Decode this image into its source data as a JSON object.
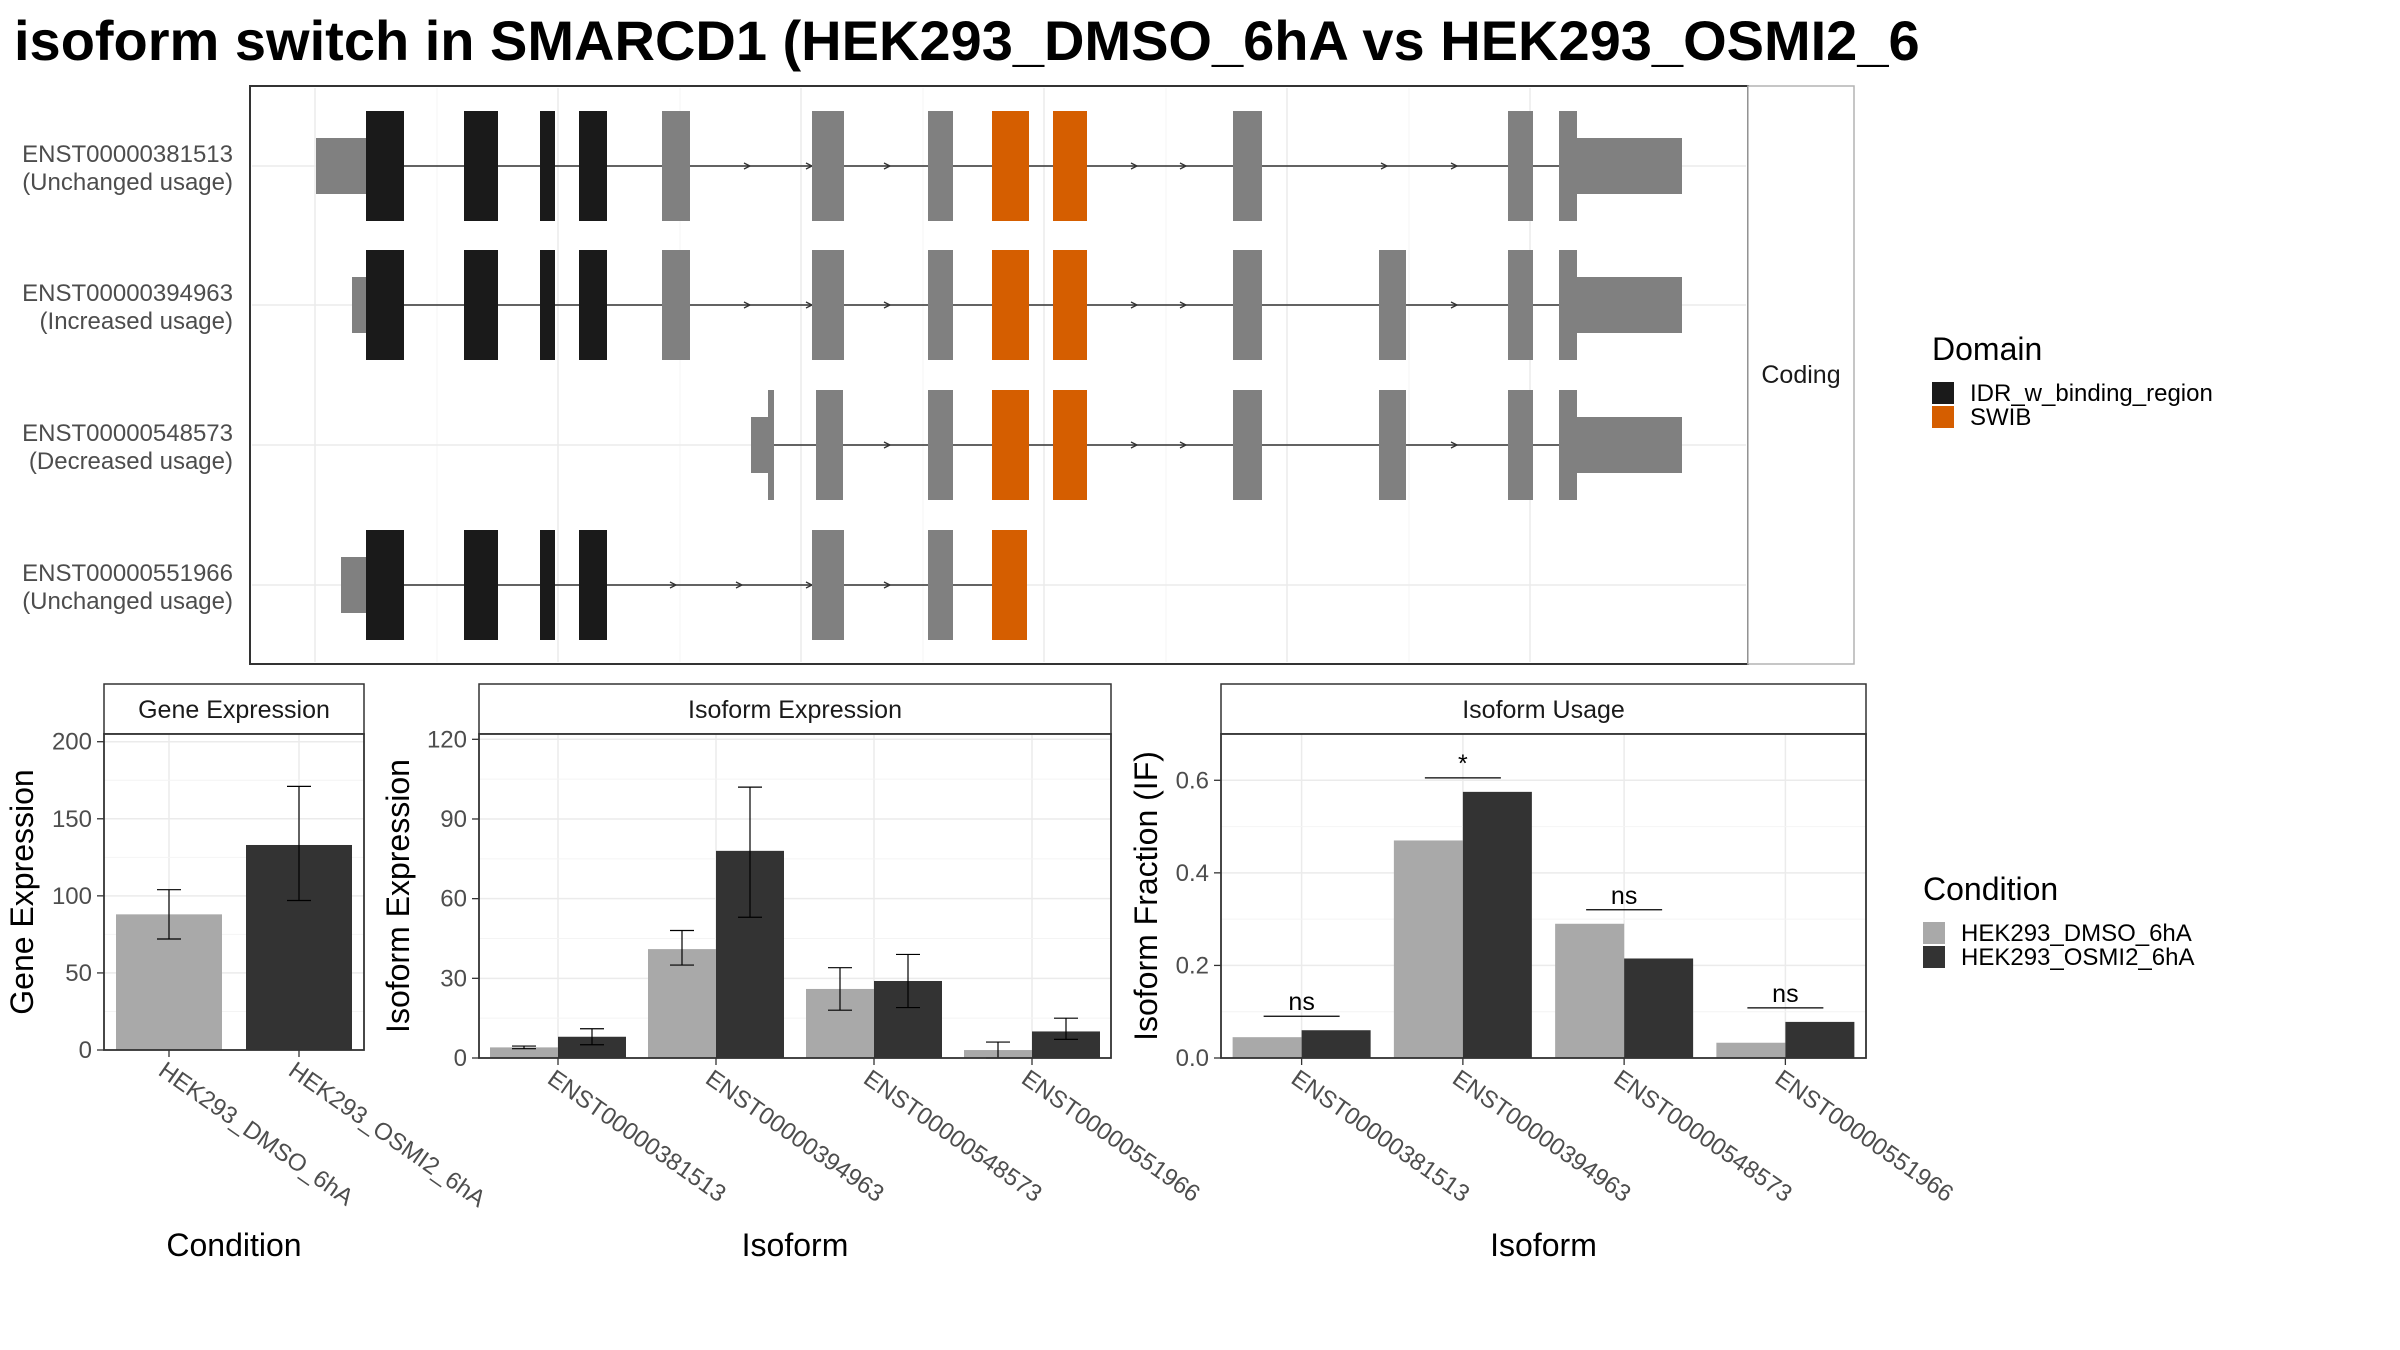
{
  "title": "isoform switch in SMARCD1 (HEK293_DMSO_6hA vs HEK293_OSMI2_6",
  "colors": {
    "domain_IDR": "#1a1a1a",
    "domain_SWIB": "#d55e00",
    "exon_plain": "#808080",
    "DMSO": "#a9a9a9",
    "OSMI2": "#333333",
    "grid": "#ebebeb",
    "panel_border": "#333333",
    "strip_fill": "#ffffff"
  },
  "gene_plot": {
    "strip_label": "Coding",
    "isoforms": [
      {
        "id": "ENST00000381513",
        "status": "(Unchanged usage)"
      },
      {
        "id": "ENST00000394963",
        "status": "(Increased usage)"
      },
      {
        "id": "ENST00000548573",
        "status": "(Decreased usage)"
      },
      {
        "id": "ENST00000551966",
        "status": "(Unchanged usage)"
      }
    ]
  },
  "domain_legend": {
    "title": "Domain",
    "entries": [
      {
        "label": "IDR_w_binding_region",
        "color": "#1a1a1a"
      },
      {
        "label": "SWIB",
        "color": "#d55e00"
      }
    ]
  },
  "condition_legend": {
    "title": "Condition",
    "entries": [
      {
        "label": "HEK293_DMSO_6hA",
        "color": "#a9a9a9"
      },
      {
        "label": "HEK293_OSMI2_6hA",
        "color": "#333333"
      }
    ]
  },
  "chart_data": [
    {
      "type": "bar",
      "title": "Gene Expression",
      "xlabel": "Condition",
      "ylabel": "Gene Expression",
      "ylim": [
        0,
        205
      ],
      "yticks": [
        0,
        50,
        100,
        150,
        200
      ],
      "categories": [
        "HEK293_DMSO_6hA",
        "HEK293_OSMI2_6hA"
      ],
      "values": [
        88,
        133
      ],
      "error": [
        [
          72,
          104
        ],
        [
          97,
          171
        ]
      ]
    },
    {
      "type": "bar",
      "title": "Isoform Expression",
      "xlabel": "Isoform",
      "ylabel": "Isoform Expression",
      "ylim": [
        0,
        122
      ],
      "yticks": [
        0,
        30,
        60,
        90,
        120
      ],
      "categories": [
        "ENST00000381513",
        "ENST00000394963",
        "ENST00000548573",
        "ENST00000551966"
      ],
      "series": [
        {
          "name": "HEK293_DMSO_6hA",
          "values": [
            4,
            41,
            26,
            3
          ],
          "error": [
            [
              3.5,
              4.5
            ],
            [
              35,
              48
            ],
            [
              18,
              34
            ],
            [
              0,
              6
            ]
          ]
        },
        {
          "name": "HEK293_OSMI2_6hA",
          "values": [
            8,
            78,
            29,
            10
          ],
          "error": [
            [
              5,
              11
            ],
            [
              53,
              102
            ],
            [
              19,
              39
            ],
            [
              7,
              15
            ]
          ]
        }
      ]
    },
    {
      "type": "bar",
      "title": "Isoform Usage",
      "xlabel": "Isoform",
      "ylabel": "Isoform Fraction (IF)",
      "ylim": [
        0,
        0.7
      ],
      "yticks": [
        "0.0",
        "0.2",
        "0.4",
        "0.6"
      ],
      "categories": [
        "ENST00000381513",
        "ENST00000394963",
        "ENST00000548573",
        "ENST00000551966"
      ],
      "series": [
        {
          "name": "HEK293_DMSO_6hA",
          "values": [
            0.045,
            0.47,
            0.29,
            0.033
          ]
        },
        {
          "name": "HEK293_OSMI2_6hA",
          "values": [
            0.06,
            0.575,
            0.215,
            0.078
          ]
        }
      ],
      "significance": [
        "ns",
        "*",
        "ns",
        "ns"
      ]
    }
  ]
}
